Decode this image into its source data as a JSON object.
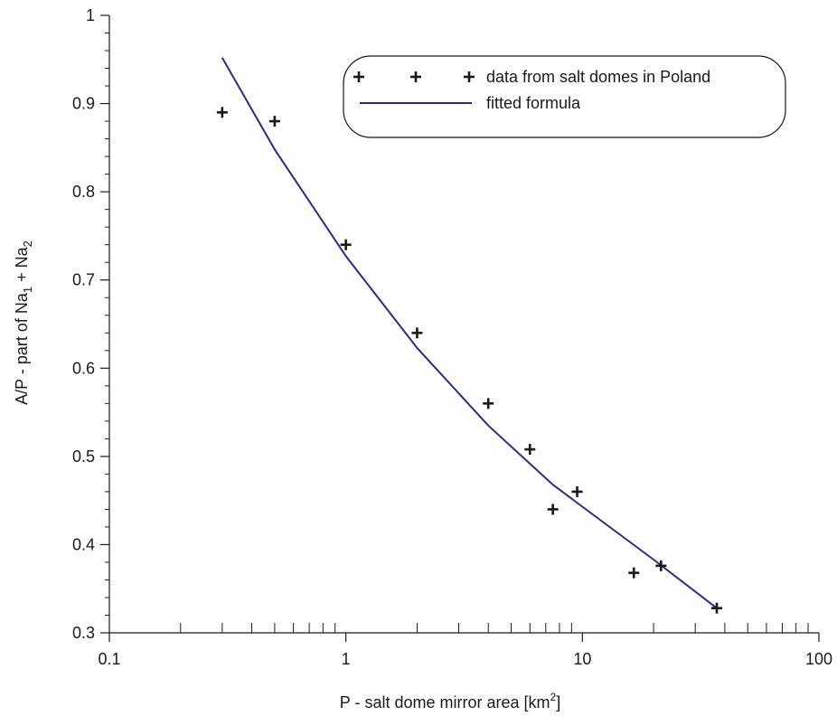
{
  "chart_data": {
    "type": "scatter",
    "title": "",
    "xlabel": {
      "main": "P - salt dome mirror area  [km",
      "sup": "2",
      "tail": "]"
    },
    "ylabel": {
      "a": "A/P - part of Na",
      "sub1": "1",
      "b": " + Na",
      "sub2": "2"
    },
    "xscale": "log",
    "xlim": [
      0.1,
      100
    ],
    "ylim": [
      0.3,
      1.0
    ],
    "x_ticks": [
      0.1,
      1,
      10,
      100
    ],
    "x_tick_labels": [
      "0.1",
      "1",
      "10",
      "100"
    ],
    "y_ticks": [
      0.3,
      0.4,
      0.5,
      0.6,
      0.7,
      0.8,
      0.9,
      1.0
    ],
    "y_tick_labels": [
      "0.3",
      "0.4",
      "0.5",
      "0.6",
      "0.7",
      "0.8",
      "0.9",
      "1"
    ],
    "grid": false,
    "legend_position": "top-right",
    "series": [
      {
        "name": "data from salt domes in Poland",
        "kind": "scatter",
        "marker": "plus",
        "color": "#1a1a1a",
        "x": [
          0.3,
          0.5,
          1.0,
          2.0,
          4.0,
          6.0,
          7.5,
          9.5,
          16.5,
          21.5,
          37.0
        ],
        "y": [
          0.89,
          0.88,
          0.74,
          0.64,
          0.56,
          0.508,
          0.44,
          0.46,
          0.368,
          0.376,
          0.328
        ]
      },
      {
        "name": "fitted formula",
        "kind": "line",
        "color": "#2b2c86",
        "x": [
          0.3,
          0.5,
          1.0,
          2.0,
          4.0,
          7.5,
          10.0,
          20.0,
          37.0
        ],
        "y": [
          0.952,
          0.848,
          0.727,
          0.623,
          0.535,
          0.468,
          0.443,
          0.383,
          0.328
        ]
      }
    ]
  }
}
